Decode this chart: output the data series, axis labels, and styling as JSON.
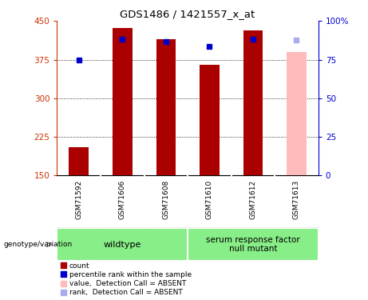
{
  "title": "GDS1486 / 1421557_x_at",
  "samples": [
    "GSM71592",
    "GSM71606",
    "GSM71608",
    "GSM71610",
    "GSM71612",
    "GSM71613"
  ],
  "bar_values": [
    205,
    437,
    415,
    365,
    432,
    null
  ],
  "absent_bar_value": 390,
  "absent_bar_color": "#ffbbbb",
  "rank_values": [
    375,
    415,
    410,
    400,
    415,
    null
  ],
  "absent_rank_value": 413,
  "rank_color": "#0000cc",
  "absent_rank_color": "#aaaaee",
  "bar_color": "#aa0000",
  "ylim_left": [
    150,
    450
  ],
  "ylim_right": [
    0,
    100
  ],
  "yticks_left": [
    150,
    225,
    300,
    375,
    450
  ],
  "yticks_right": [
    0,
    25,
    50,
    75,
    100
  ],
  "ytick_labels_right": [
    "0",
    "25",
    "50",
    "75",
    "100%"
  ],
  "grid_values": [
    225,
    300,
    375
  ],
  "wildtype_label": "wildtype",
  "mutant_label": "serum response factor\nnull mutant",
  "genotype_label": "genotype/variation",
  "legend_items": [
    {
      "label": "count",
      "color": "#aa0000"
    },
    {
      "label": "percentile rank within the sample",
      "color": "#0000cc"
    },
    {
      "label": "value,  Detection Call = ABSENT",
      "color": "#ffbbbb"
    },
    {
      "label": "rank,  Detection Call = ABSENT",
      "color": "#aaaaee"
    }
  ],
  "bar_width": 0.45,
  "left_ax_color": "#cc3300",
  "right_ax_color": "#0000cc",
  "background_color": "#ffffff",
  "box_bg": "#cccccc",
  "green_bg": "#88ee88"
}
